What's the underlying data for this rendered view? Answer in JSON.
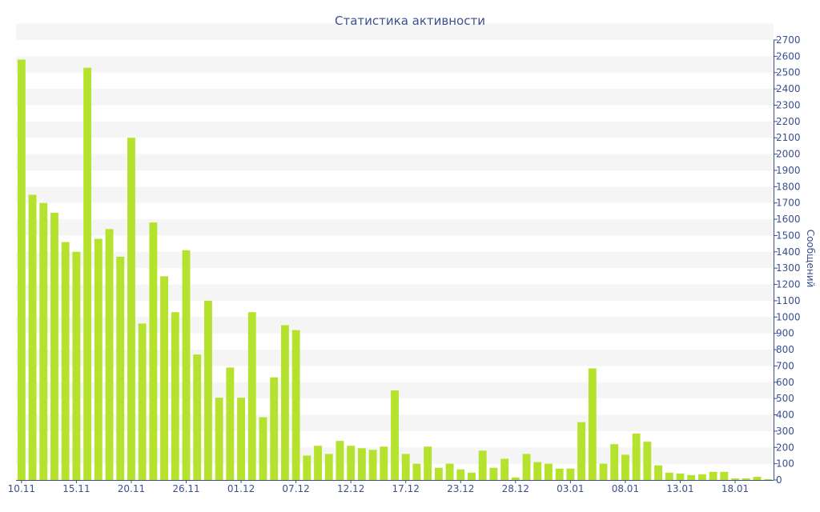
{
  "chart_data": {
    "type": "bar",
    "title": "Статистика активности",
    "xlabel": "",
    "ylabel": "Сообщений",
    "ylim": [
      0,
      2700
    ],
    "y_axis_side": "right",
    "y_tick_step": 100,
    "grid": "horizontal-bands",
    "bar_color": "#b5e22c",
    "band_color": "#f5f5f5",
    "text_color": "#3a4f8f",
    "x_tick_labels": [
      {
        "index": 0,
        "label": "10.11"
      },
      {
        "index": 5,
        "label": "15.11"
      },
      {
        "index": 10,
        "label": "20.11"
      },
      {
        "index": 15,
        "label": "26.11"
      },
      {
        "index": 20,
        "label": "01.12"
      },
      {
        "index": 25,
        "label": "07.12"
      },
      {
        "index": 30,
        "label": "12.12"
      },
      {
        "index": 35,
        "label": "17.12"
      },
      {
        "index": 40,
        "label": "23.12"
      },
      {
        "index": 45,
        "label": "28.12"
      },
      {
        "index": 50,
        "label": "03.01"
      },
      {
        "index": 55,
        "label": "08.01"
      },
      {
        "index": 60,
        "label": "13.01"
      },
      {
        "index": 65,
        "label": "18.01"
      }
    ],
    "values": [
      2580,
      1750,
      1700,
      1640,
      1460,
      1400,
      2530,
      1480,
      1540,
      1370,
      2100,
      960,
      1580,
      1250,
      1030,
      1410,
      770,
      1100,
      505,
      690,
      505,
      1030,
      385,
      630,
      950,
      920,
      150,
      210,
      160,
      240,
      210,
      195,
      185,
      205,
      550,
      160,
      100,
      205,
      75,
      100,
      65,
      45,
      180,
      75,
      130,
      15,
      160,
      110,
      100,
      70,
      70,
      355,
      685,
      100,
      220,
      155,
      285,
      235,
      90,
      45,
      40,
      30,
      35,
      50,
      50,
      10,
      10,
      20,
      5
    ]
  }
}
